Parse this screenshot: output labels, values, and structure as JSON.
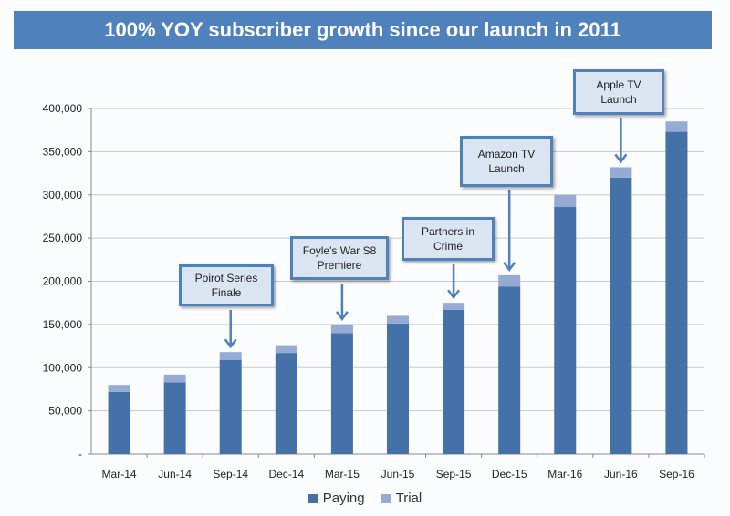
{
  "chart_data": {
    "type": "bar",
    "stacked": true,
    "title": "100% YOY subscriber growth since our launch in 2011",
    "xlabel": "",
    "ylabel": "",
    "ylim": [
      0,
      400000
    ],
    "yticks": [
      0,
      50000,
      100000,
      150000,
      200000,
      250000,
      300000,
      350000,
      400000
    ],
    "ytick_labels": [
      "-",
      "50,000",
      "100,000",
      "150,000",
      "200,000",
      "250,000",
      "300,000",
      "350,000",
      "400,000"
    ],
    "grid": true,
    "legend_position": "bottom",
    "categories": [
      "Mar-14",
      "Jun-14",
      "Sep-14",
      "Dec-14",
      "Mar-15",
      "Jun-15",
      "Sep-15",
      "Dec-15",
      "Mar-16",
      "Jun-16",
      "Sep-16"
    ],
    "series": [
      {
        "name": "Paying",
        "color": "#4472a8",
        "values": [
          72000,
          83000,
          109000,
          117000,
          140000,
          151000,
          167000,
          194000,
          286000,
          320000,
          373000
        ]
      },
      {
        "name": "Trial",
        "color": "#95abd4",
        "values": [
          8000,
          9000,
          9000,
          9000,
          10000,
          9000,
          8000,
          13000,
          14000,
          12000,
          12000
        ]
      }
    ],
    "annotations": [
      {
        "category": "Sep-14",
        "text": "Poirot Series Finale"
      },
      {
        "category": "Mar-15",
        "text": "Foyle's War S8 Premiere"
      },
      {
        "category": "Sep-15",
        "text": "Partners in Crime"
      },
      {
        "category": "Dec-15",
        "text": "Amazon TV Launch"
      },
      {
        "category": "Jun-16",
        "text": "Apple TV Launch"
      }
    ]
  }
}
